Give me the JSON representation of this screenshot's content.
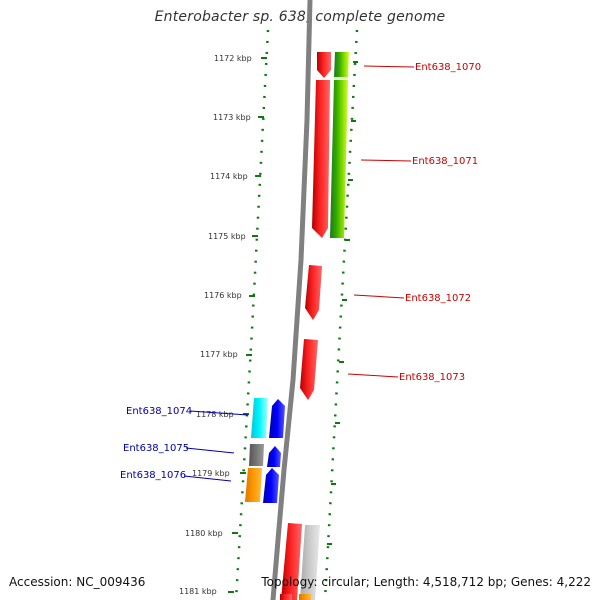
{
  "title": "Enterobacter sp. 638, complete genome",
  "footer": {
    "accession": "Accession: NC_009436",
    "topology": "Topology: circular; Length: 4,518,712 bp; Genes: 4,222"
  },
  "colors": {
    "backbone": "#808080",
    "dotted_track": "#117711",
    "gene_red": "#ff0000",
    "gene_green": "#66cc00",
    "gene_cyan": "#00e5ee",
    "gene_blue": "#0000ff",
    "gene_gray": "#777777",
    "gene_orange": "#ff9900",
    "label_red": "#cc0000",
    "label_blue": "#0000aa"
  },
  "ticks": [
    {
      "label": "1172 kbp"
    },
    {
      "label": "1173 kbp"
    },
    {
      "label": "1174 kbp"
    },
    {
      "label": "1175 kbp"
    },
    {
      "label": "1176 kbp"
    },
    {
      "label": "1177 kbp"
    },
    {
      "label": "1178 kbp"
    },
    {
      "label": "1179 kbp"
    },
    {
      "label": "1180 kbp"
    },
    {
      "label": "1181 kbp"
    }
  ],
  "gene_labels": [
    {
      "name": "Ent638_1070",
      "side": "right"
    },
    {
      "name": "Ent638_1071",
      "side": "right"
    },
    {
      "name": "Ent638_1072",
      "side": "right"
    },
    {
      "name": "Ent638_1073",
      "side": "right"
    },
    {
      "name": "Ent638_1074",
      "side": "left"
    },
    {
      "name": "Ent638_1075",
      "side": "left"
    },
    {
      "name": "Ent638_1076",
      "side": "left"
    }
  ]
}
